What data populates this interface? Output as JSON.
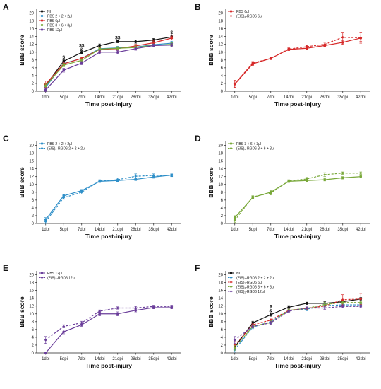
{
  "figure": {
    "colors": {
      "NI": "#111111",
      "S2": "#2f8fc8",
      "S6": "#d62828",
      "S3": "#79a83a",
      "S12": "#6a3d9a"
    }
  },
  "chart_data": [
    {
      "panel": "A",
      "type": "line",
      "categories": [
        "1dpi",
        "5dpi",
        "7dpi",
        "14dpi",
        "21dpi",
        "28dpi",
        "35dpi",
        "42dpi"
      ],
      "xlabel": "Time post-injury",
      "ylabel": "BBB score",
      "ylim": [
        0,
        21
      ],
      "yticks": [
        0,
        2,
        4,
        6,
        8,
        10,
        12,
        14,
        16,
        18,
        20
      ],
      "legend": "top-left",
      "series": [
        {
          "name": "NI",
          "color": "NI",
          "dash": false,
          "marker": "circle",
          "values": [
            1.5,
            7.7,
            9.9,
            11.7,
            12.7,
            12.7,
            13.1,
            13.9
          ],
          "err": [
            0.6,
            0.4,
            0.4,
            0.4,
            0.3,
            0.4,
            0.4,
            0.4
          ]
        },
        {
          "name": "PBS 2 + 2 + 2μl",
          "color": "S2",
          "dash": false,
          "marker": "circle",
          "values": [
            1.0,
            7.1,
            8.4,
            10.9,
            11.1,
            11.3,
            11.9,
            12.3
          ],
          "err": [
            0.5,
            0.4,
            0.4,
            0.4,
            0.4,
            0.4,
            0.4,
            0.5
          ]
        },
        {
          "name": "PBS 6μl",
          "color": "S6",
          "dash": false,
          "marker": "circle",
          "values": [
            1.8,
            7.0,
            8.4,
            10.7,
            10.9,
            11.6,
            12.4,
            13.6
          ],
          "err": [
            0.8,
            0.4,
            0.4,
            0.4,
            0.4,
            0.4,
            0.5,
            0.5
          ]
        },
        {
          "name": "PBS 3 + 6 + 3μl",
          "color": "S3",
          "dash": false,
          "marker": "circle",
          "values": [
            1.4,
            6.7,
            7.9,
            10.8,
            11.0,
            11.2,
            11.7,
            12.0
          ],
          "err": [
            0.6,
            0.4,
            0.4,
            0.4,
            0.4,
            0.4,
            0.4,
            0.4
          ]
        },
        {
          "name": "PBS 12μl",
          "color": "S12",
          "dash": false,
          "marker": "circle",
          "values": [
            0.3,
            5.4,
            7.2,
            10.0,
            10.0,
            10.9,
            11.7,
            11.8
          ],
          "err": [
            0.4,
            0.5,
            0.4,
            0.4,
            0.4,
            0.4,
            0.4,
            0.4
          ]
        }
      ],
      "annotations": [
        {
          "x": "5dpi",
          "y": 8.3,
          "text": "$"
        },
        {
          "x": "7dpi",
          "y": 11.3,
          "text": "$$"
        },
        {
          "x": "7dpi",
          "y": 10.3,
          "text": "&"
        },
        {
          "x": "21dpi",
          "y": 13.3,
          "text": "$$"
        },
        {
          "x": "42dpi",
          "y": 14.7,
          "text": "$"
        }
      ]
    },
    {
      "panel": "B",
      "type": "line",
      "categories": [
        "1dpi",
        "5dpi",
        "7dpi",
        "14dpi",
        "21dpi",
        "28dpi",
        "35dpi",
        "42dpi"
      ],
      "xlabel": "Time post-injury",
      "ylabel": "BBB score",
      "ylim": [
        0,
        21
      ],
      "yticks": [
        0,
        2,
        4,
        6,
        8,
        10,
        12,
        14,
        16,
        18,
        20
      ],
      "legend": "top-left",
      "series": [
        {
          "name": "PBS 6μl",
          "color": "S6",
          "dash": false,
          "marker": "circle",
          "values": [
            1.8,
            7.0,
            8.4,
            10.7,
            11.0,
            11.7,
            12.5,
            13.6
          ],
          "err": [
            0.9,
            0.4,
            0.3,
            0.3,
            0.3,
            0.3,
            0.5,
            0.8
          ]
        },
        {
          "name": "(EIS)₂-RGD6 6μl",
          "color": "S6",
          "dash": true,
          "marker": "diamond",
          "values": [
            1.9,
            7.2,
            8.4,
            10.8,
            11.4,
            12.0,
            13.8,
            13.7
          ],
          "err": [
            0.9,
            0.4,
            0.3,
            0.3,
            0.3,
            0.5,
            1.3,
            1.4
          ]
        }
      ],
      "annotations": []
    },
    {
      "panel": "C",
      "type": "line",
      "categories": [
        "1dpi",
        "5dpi",
        "7dpi",
        "14dpi",
        "21dpi",
        "28dpi",
        "35dpi",
        "42dpi"
      ],
      "xlabel": "Time post-injury",
      "ylabel": "BBB score",
      "ylim": [
        0,
        21
      ],
      "yticks": [
        0,
        2,
        4,
        6,
        8,
        10,
        12,
        14,
        16,
        18,
        20
      ],
      "legend": "top-left",
      "series": [
        {
          "name": "PBS 2 + 2 + 2μl",
          "color": "S2",
          "dash": false,
          "marker": "circle",
          "values": [
            1.0,
            7.1,
            8.4,
            10.8,
            11.0,
            11.3,
            11.9,
            12.4
          ],
          "err": [
            0.5,
            0.3,
            0.3,
            0.3,
            0.3,
            0.3,
            0.3,
            0.3
          ]
        },
        {
          "name": "(EIS)₂-RGD6 2 + 2 + 2μl",
          "color": "S2",
          "dash": true,
          "marker": "diamond",
          "values": [
            0.5,
            6.6,
            8.0,
            10.9,
            11.2,
            12.1,
            12.3,
            12.3
          ],
          "err": [
            0.5,
            0.4,
            0.5,
            0.3,
            0.4,
            0.6,
            0.4,
            0.3
          ]
        }
      ],
      "annotations": []
    },
    {
      "panel": "D",
      "type": "line",
      "categories": [
        "1dpi",
        "5dpi",
        "7dpi",
        "14dpi",
        "21dpi",
        "28dpi",
        "35dpi",
        "42dpi"
      ],
      "xlabel": "Time post-injury",
      "ylabel": "BBB score",
      "ylim": [
        0,
        21
      ],
      "yticks": [
        0,
        2,
        4,
        6,
        8,
        10,
        12,
        14,
        16,
        18,
        20
      ],
      "legend": "top-left",
      "series": [
        {
          "name": "PBS 3 + 6 + 3μl",
          "color": "S3",
          "dash": false,
          "marker": "circle",
          "values": [
            1.5,
            6.7,
            8.0,
            10.8,
            11.0,
            11.2,
            11.7,
            12.0
          ],
          "err": [
            0.5,
            0.3,
            0.4,
            0.3,
            0.3,
            0.3,
            0.3,
            0.3
          ]
        },
        {
          "name": "(EIS)₂-RGD6 3 + 6 + 3μl",
          "color": "S3",
          "dash": true,
          "marker": "diamond",
          "values": [
            0.8,
            6.8,
            7.8,
            10.9,
            11.4,
            12.5,
            12.9,
            12.9
          ],
          "err": [
            0.5,
            0.3,
            0.5,
            0.3,
            0.4,
            0.5,
            0.3,
            0.3
          ]
        }
      ],
      "annotations": []
    },
    {
      "panel": "E",
      "type": "line",
      "categories": [
        "1dpi",
        "5dpi",
        "7dpi",
        "14dpi",
        "21dpi",
        "28dpi",
        "35dpi",
        "42dpi"
      ],
      "xlabel": "Time post-injury",
      "ylabel": "BBB score",
      "ylim": [
        0,
        21
      ],
      "yticks": [
        0,
        2,
        4,
        6,
        8,
        10,
        12,
        14,
        16,
        18,
        20
      ],
      "legend": "top-left",
      "series": [
        {
          "name": "PBS 12μl",
          "color": "S12",
          "dash": false,
          "marker": "circle",
          "values": [
            0.0,
            5.4,
            7.2,
            10.0,
            10.0,
            10.9,
            11.6,
            11.6
          ],
          "err": [
            0.3,
            0.5,
            0.4,
            0.5,
            0.5,
            0.4,
            0.3,
            0.3
          ]
        },
        {
          "name": "(EIS)₂-RGD6 12μl",
          "color": "S12",
          "dash": true,
          "marker": "diamond",
          "values": [
            3.3,
            6.8,
            7.7,
            10.7,
            11.5,
            11.5,
            11.9,
            11.9
          ],
          "err": [
            0.9,
            0.4,
            0.4,
            0.3,
            0.3,
            0.4,
            0.3,
            0.3
          ]
        }
      ],
      "annotations": []
    },
    {
      "panel": "F",
      "type": "line",
      "categories": [
        "1dpi",
        "5dpi",
        "7dpi",
        "14dpi",
        "21dpi",
        "28dpi",
        "35dpi",
        "42dpi"
      ],
      "xlabel": "Time post-injury",
      "ylabel": "BBB score",
      "ylim": [
        0,
        21
      ],
      "yticks": [
        0,
        2,
        4,
        6,
        8,
        10,
        12,
        14,
        16,
        18,
        20
      ],
      "legend": "top-left",
      "series": [
        {
          "name": "NI",
          "color": "NI",
          "dash": false,
          "marker": "circle",
          "values": [
            1.5,
            7.7,
            9.8,
            11.7,
            12.7,
            12.7,
            13.1,
            13.8
          ],
          "err": [
            0.6,
            0.4,
            0.4,
            0.4,
            0.3,
            0.4,
            0.4,
            0.4
          ]
        },
        {
          "name": "(EIS)₂-RGD6 2 + 2 + 2μl",
          "color": "S2",
          "dash": true,
          "marker": "diamond",
          "values": [
            0.8,
            6.6,
            8.0,
            10.9,
            11.2,
            12.1,
            12.3,
            12.3
          ],
          "err": [
            0.6,
            0.4,
            0.5,
            0.3,
            0.4,
            0.5,
            0.4,
            0.3
          ]
        },
        {
          "name": "(EIS)₂-RGD6 6μl",
          "color": "S6",
          "dash": true,
          "marker": "diamond",
          "values": [
            2.0,
            7.2,
            8.4,
            10.9,
            11.4,
            12.0,
            13.6,
            13.8
          ],
          "err": [
            0.9,
            0.4,
            0.3,
            0.3,
            0.3,
            0.5,
            1.3,
            1.4
          ]
        },
        {
          "name": "(EIS)₂-RGD6 3 + 6 + 3μl",
          "color": "S3",
          "dash": true,
          "marker": "diamond",
          "values": [
            1.3,
            6.8,
            7.8,
            10.9,
            11.4,
            12.4,
            12.9,
            12.9
          ],
          "err": [
            0.6,
            0.3,
            0.5,
            0.3,
            0.4,
            0.5,
            0.3,
            0.3
          ]
        },
        {
          "name": "(EIS)₂-RGD6 12μl",
          "color": "S12",
          "dash": true,
          "marker": "diamond",
          "values": [
            3.3,
            6.8,
            7.7,
            10.7,
            11.5,
            11.5,
            11.9,
            11.9
          ],
          "err": [
            0.9,
            0.4,
            0.4,
            0.3,
            0.3,
            0.4,
            0.3,
            0.3
          ]
        }
      ],
      "annotations": [
        {
          "x": "7dpi",
          "y": 11.5,
          "text": "$"
        },
        {
          "x": "7dpi",
          "y": 10.4,
          "text": "&"
        }
      ]
    }
  ]
}
